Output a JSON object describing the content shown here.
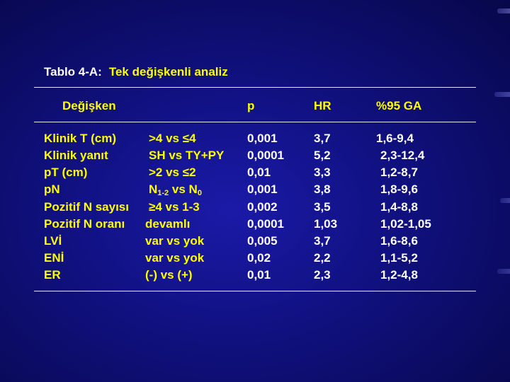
{
  "title": {
    "prefix": "Tablo 4-A:",
    "main": "Tek değişkenli analiz"
  },
  "headers": {
    "variable": "Değişken",
    "p": "p",
    "hr": "HR",
    "ci": "%95 GA"
  },
  "rows": [
    {
      "variable": "Klinik T (cm)",
      "comparison": ">4 vs ≤4",
      "p": "0,001",
      "hr": "3,7",
      "ci": "1,6-9,4"
    },
    {
      "variable": "Klinik yanıt",
      "comparison": "SH vs TY+PY",
      "p": "0,0001",
      "hr": "5,2",
      "ci": "2,3-12,4"
    },
    {
      "variable": "pT (cm)",
      "comparison": ">2 vs ≤2",
      "p": "0,01",
      "hr": "3,3",
      "ci": "1,2-8,7"
    },
    {
      "variable": "pN",
      "comparison": {
        "a": "N",
        "a_sub": "1-2",
        "mid": " vs N",
        "b_sub": "0"
      },
      "p": "0,001",
      "hr": "3,8",
      "ci": "1,8-9,6"
    },
    {
      "variable": "Pozitif N sayısı",
      "comparison": "≥4 vs 1-3",
      "p": "0,002",
      "hr": "3,5",
      "ci": "1,4-8,8"
    },
    {
      "variable": "Pozitif N oranı",
      "comparison": "devamlı",
      "p": "0,0001",
      "hr": "1,03",
      "ci": "1,02-1,05"
    },
    {
      "variable": "LVİ",
      "comparison": "var vs yok",
      "p": "0,005",
      "hr": "3,7",
      "ci": "1,6-8,6"
    },
    {
      "variable": "ENİ",
      "comparison": "var vs yok",
      "p": "0,02",
      "hr": "2,2",
      "ci": "1,1-5,2"
    },
    {
      "variable": "ER",
      "comparison": "(-) vs (+)",
      "p": "0,01",
      "hr": "2,3",
      "ci": "1,2-4,8"
    }
  ]
}
